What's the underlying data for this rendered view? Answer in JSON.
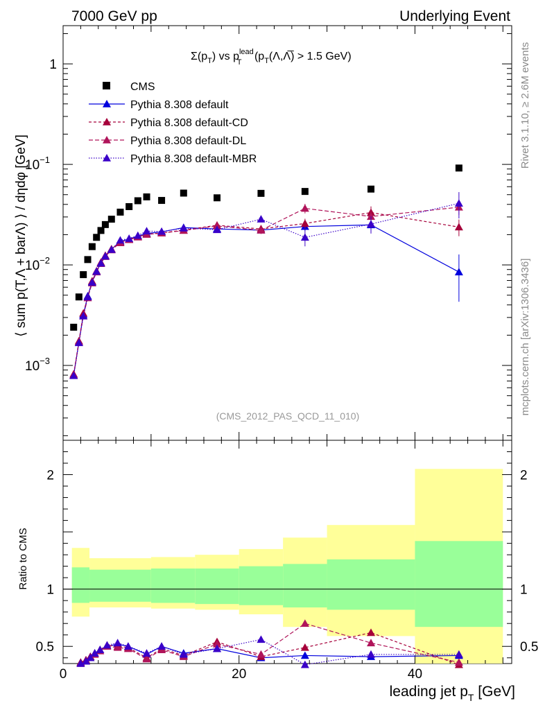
{
  "header": {
    "left": "7000 GeV pp",
    "right": "Underlying Event"
  },
  "side_labels": {
    "rivet": "Rivet 3.1.10, ≥ 2.6M events",
    "mcplots": "mcplots.cern.ch [arXiv:1306.3436]"
  },
  "plot_title": {
    "sigma": "Σ(p",
    "sigma_sub": "T",
    "vs": ") vs p",
    "lead_sup": "lead",
    "lead_sub": "T",
    "cond": " (p",
    "cond_sub": "T",
    "cond_rest": "(Λ,Λ̅) > 1.5 GeV)"
  },
  "analysis_id": "(CMS_2012_PAS_QCD_11_010)",
  "axes": {
    "ylabel_top": "⟨ sum p(T,Λ + barΛ) ⟩ / dηdφ [GeV]",
    "ylabel_bottom": "Ratio to CMS",
    "xlabel": "leading jet p",
    "xlabel_sub": "T",
    "xlabel_unit": " [GeV]",
    "x_ticks": [
      "0",
      "20",
      "40"
    ],
    "y_ticks_top": [
      "1",
      "10",
      "10",
      "10"
    ],
    "y_ticks_top_exp": [
      "",
      "−1",
      "−2",
      "−3"
    ],
    "y_ticks_bottom": [
      "2",
      "1",
      "0.5"
    ]
  },
  "legend": [
    {
      "label": "CMS",
      "color": "#000000",
      "marker": "square",
      "dash": ""
    },
    {
      "label": "Pythia 8.308 default",
      "color": "#0000dd",
      "marker": "triangle",
      "dash": ""
    },
    {
      "label": "Pythia 8.308 default-CD",
      "color": "#a6003a",
      "marker": "triangle",
      "dash": "4,3"
    },
    {
      "label": "Pythia 8.308 default-DL",
      "color": "#b0145a",
      "marker": "triangle",
      "dash": "6,3"
    },
    {
      "label": "Pythia 8.308 default-MBR",
      "color": "#3a00c8",
      "marker": "triangle",
      "dash": "1.5,2"
    }
  ],
  "chart_data": {
    "type": "scatter",
    "xlim": [
      0,
      51
    ],
    "ylim": [
      0.00018,
      2.4
    ],
    "yscale": "log",
    "ratio_ylim": [
      0.35,
      2.3
    ],
    "grid": false,
    "legend_position": "top-left",
    "x": [
      1.2,
      1.8,
      2.3,
      2.8,
      3.3,
      3.8,
      4.3,
      4.8,
      5.5,
      6.5,
      7.5,
      8.5,
      9.5,
      11.2,
      13.7,
      17.5,
      22.5,
      27.5,
      35.0,
      45.0
    ],
    "series": [
      {
        "name": "CMS",
        "values": [
          0.0024,
          0.0048,
          0.008,
          0.0113,
          0.0152,
          0.0188,
          0.022,
          0.0252,
          0.0285,
          0.0335,
          0.038,
          0.0435,
          0.0475,
          0.0438,
          0.0518,
          0.0465,
          0.0515,
          0.0538,
          0.0568,
          0.092
        ]
      },
      {
        "name": "Pythia 8.308 default",
        "values": [
          0.0008,
          0.0017,
          0.0032,
          0.0049,
          0.0068,
          0.0086,
          0.0105,
          0.0123,
          0.0143,
          0.0171,
          0.0181,
          0.0193,
          0.0206,
          0.0213,
          0.0235,
          0.0228,
          0.0222,
          0.0241,
          0.025,
          0.0085
        ],
        "errors": [
          5e-05,
          0.0001,
          0.00015,
          0.0002,
          0.0003,
          0.0004,
          0.0004,
          0.0005,
          0.0005,
          0.0006,
          0.0006,
          0.0007,
          0.0008,
          0.0009,
          0.001,
          0.0015,
          0.0016,
          0.0022,
          0.004,
          0.0042
        ]
      },
      {
        "name": "Pythia 8.308 default-CD",
        "values": [
          0.00082,
          0.00175,
          0.0033,
          0.0048,
          0.0069,
          0.0087,
          0.0106,
          0.0124,
          0.0144,
          0.0168,
          0.0179,
          0.019,
          0.0202,
          0.0208,
          0.0222,
          0.0248,
          0.0228,
          0.0258,
          0.0332,
          0.0238
        ],
        "errors": [
          5e-05,
          0.0001,
          0.00015,
          0.0002,
          0.0003,
          0.0004,
          0.0004,
          0.0005,
          0.0005,
          0.0006,
          0.0006,
          0.0007,
          0.0008,
          0.0009,
          0.001,
          0.0015,
          0.0018,
          0.003,
          0.005,
          0.0045
        ]
      },
      {
        "name": "Pythia 8.308 default-DL",
        "values": [
          0.0008,
          0.0017,
          0.0031,
          0.0047,
          0.0066,
          0.0085,
          0.0103,
          0.0121,
          0.0141,
          0.0166,
          0.0178,
          0.0189,
          0.0201,
          0.0207,
          0.022,
          0.0244,
          0.0221,
          0.0365,
          0.0303,
          0.0375
        ],
        "errors": [
          5e-05,
          0.0001,
          0.00015,
          0.0002,
          0.0003,
          0.0004,
          0.0004,
          0.0005,
          0.0005,
          0.0006,
          0.0006,
          0.0007,
          0.0008,
          0.0009,
          0.001,
          0.0015,
          0.0018,
          0.004,
          0.005,
          0.006
        ]
      },
      {
        "name": "Pythia 8.308 default-MBR",
        "values": [
          0.00079,
          0.00168,
          0.0031,
          0.0048,
          0.0067,
          0.0086,
          0.0104,
          0.0122,
          0.0142,
          0.0176,
          0.0183,
          0.0196,
          0.0217,
          0.0215,
          0.0232,
          0.0224,
          0.0285,
          0.0188,
          0.0255,
          0.041
        ],
        "errors": [
          5e-05,
          0.0001,
          0.00015,
          0.0002,
          0.0003,
          0.0004,
          0.0004,
          0.0005,
          0.0005,
          0.0006,
          0.0006,
          0.0007,
          0.0008,
          0.0009,
          0.001,
          0.0015,
          0.0018,
          0.0035,
          0.005,
          0.012
        ]
      }
    ],
    "ratio_x": [
      2.0,
      2.6,
      3.1,
      3.6,
      4.2,
      5.0,
      6.2,
      7.4,
      9.5,
      11.2,
      13.7,
      17.5,
      22.5,
      27.5,
      35.0,
      45.0
    ],
    "ratio_series": [
      {
        "name": "Pythia 8.308 default",
        "values": [
          0.36,
          0.38,
          0.41,
          0.44,
          0.47,
          0.5,
          0.52,
          0.5,
          0.43,
          0.5,
          0.44,
          0.48,
          0.4,
          0.42,
          0.41,
          0.42
        ]
      },
      {
        "name": "Pythia 8.308 default-CD",
        "values": [
          0.36,
          0.38,
          0.41,
          0.44,
          0.47,
          0.51,
          0.5,
          0.49,
          0.4,
          0.48,
          0.42,
          0.54,
          0.41,
          0.49,
          0.62,
          0.34
        ]
      },
      {
        "name": "Pythia 8.308 default-DL",
        "values": [
          0.35,
          0.37,
          0.4,
          0.43,
          0.46,
          0.5,
          0.49,
          0.48,
          0.39,
          0.47,
          0.41,
          0.52,
          0.43,
          0.7,
          0.53,
          0.36
        ]
      },
      {
        "name": "Pythia 8.308 default-MBR",
        "values": [
          0.35,
          0.37,
          0.4,
          0.44,
          0.47,
          0.51,
          0.53,
          0.5,
          0.44,
          0.5,
          0.43,
          0.48,
          0.56,
          0.34,
          0.43,
          0.43
        ]
      }
    ],
    "uncertainty_bins": [
      {
        "x0": 1,
        "x1": 3,
        "inner": [
          0.88,
          1.19
        ],
        "outer": [
          0.76,
          1.36
        ]
      },
      {
        "x0": 3,
        "x1": 10,
        "inner": [
          0.89,
          1.17
        ],
        "outer": [
          0.84,
          1.27
        ]
      },
      {
        "x0": 10,
        "x1": 15,
        "inner": [
          0.88,
          1.18
        ],
        "outer": [
          0.83,
          1.28
        ]
      },
      {
        "x0": 15,
        "x1": 20,
        "inner": [
          0.87,
          1.18
        ],
        "outer": [
          0.82,
          1.3
        ]
      },
      {
        "x0": 20,
        "x1": 25,
        "inner": [
          0.86,
          1.2
        ],
        "outer": [
          0.78,
          1.35
        ]
      },
      {
        "x0": 25,
        "x1": 30,
        "inner": [
          0.84,
          1.22
        ],
        "outer": [
          0.67,
          1.45
        ]
      },
      {
        "x0": 30,
        "x1": 40,
        "inner": [
          0.82,
          1.26
        ],
        "outer": [
          0.59,
          1.56
        ]
      },
      {
        "x0": 40,
        "x1": 50,
        "inner": [
          0.67,
          1.42
        ],
        "outer": [
          0.28,
          2.05
        ]
      }
    ],
    "band_colors": {
      "inner": "#99ff99",
      "outer": "#ffff99"
    }
  }
}
